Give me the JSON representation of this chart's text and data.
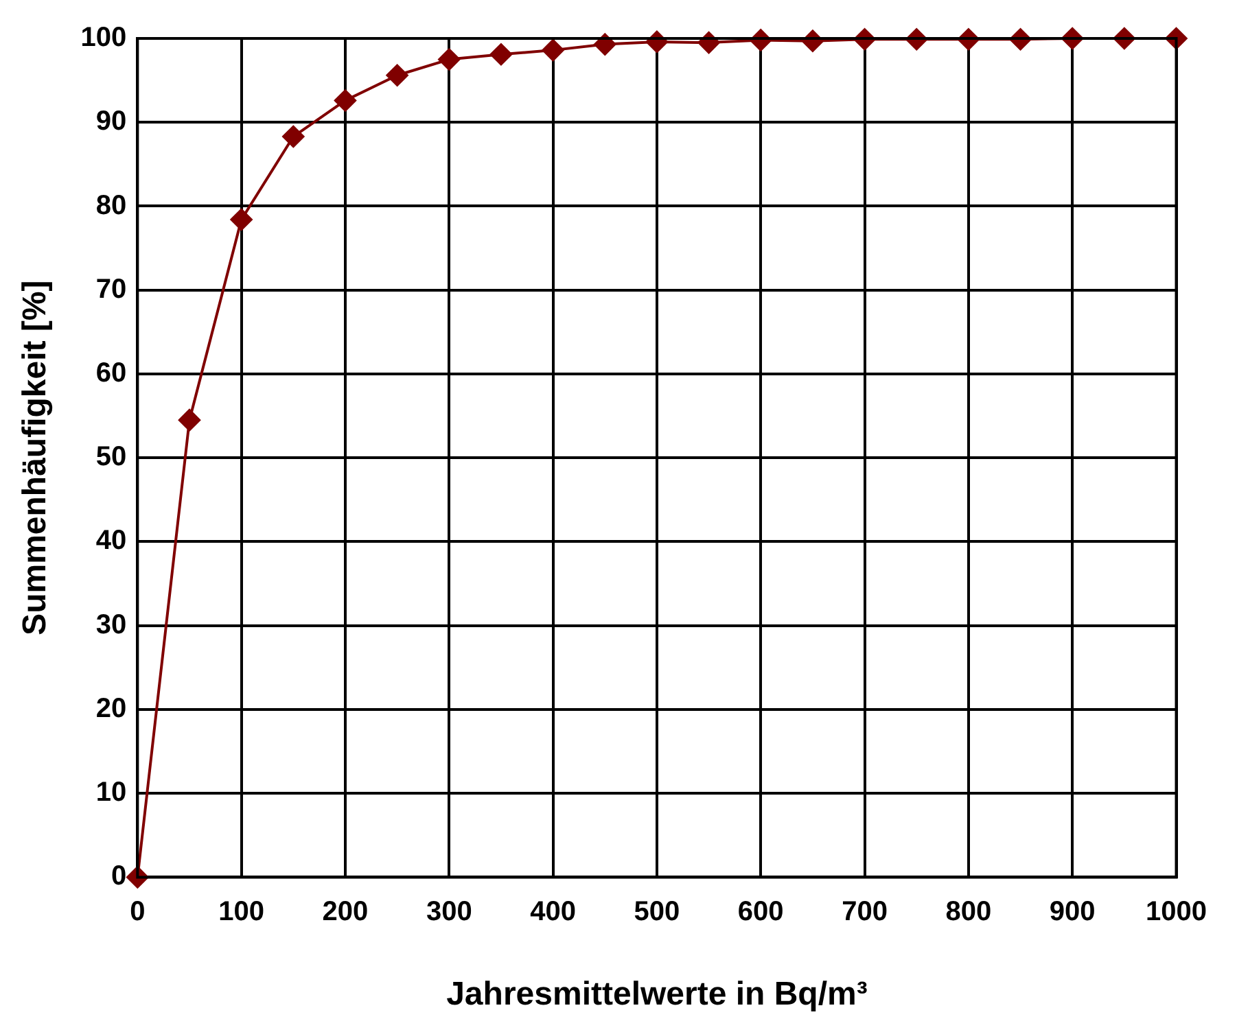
{
  "chart_data": {
    "type": "line",
    "xlabel": "Jahresmittelwerte in Bq/m³",
    "ylabel": "Summenhäufigkeit [%]",
    "x": [
      0,
      50,
      100,
      150,
      200,
      250,
      300,
      350,
      400,
      450,
      500,
      550,
      600,
      650,
      700,
      750,
      800,
      850,
      900,
      950,
      1000
    ],
    "series": [
      {
        "color": "#800000",
        "values": [
          0,
          54.5,
          78.4,
          88.3,
          92.6,
          95.6,
          97.5,
          98.1,
          98.6,
          99.3,
          99.6,
          99.5,
          99.8,
          99.7,
          99.9,
          99.9,
          99.9,
          99.9,
          100,
          100,
          100
        ]
      }
    ],
    "xlim": [
      0,
      1000
    ],
    "xticks": [
      0,
      100,
      200,
      300,
      400,
      500,
      600,
      700,
      800,
      900,
      1000
    ],
    "ylim": [
      0,
      100
    ],
    "yticks": [
      0,
      10,
      20,
      30,
      40,
      50,
      60,
      70,
      80,
      90,
      100
    ],
    "grid": true,
    "legend": false,
    "marker": "diamond",
    "line_style": "solid"
  }
}
